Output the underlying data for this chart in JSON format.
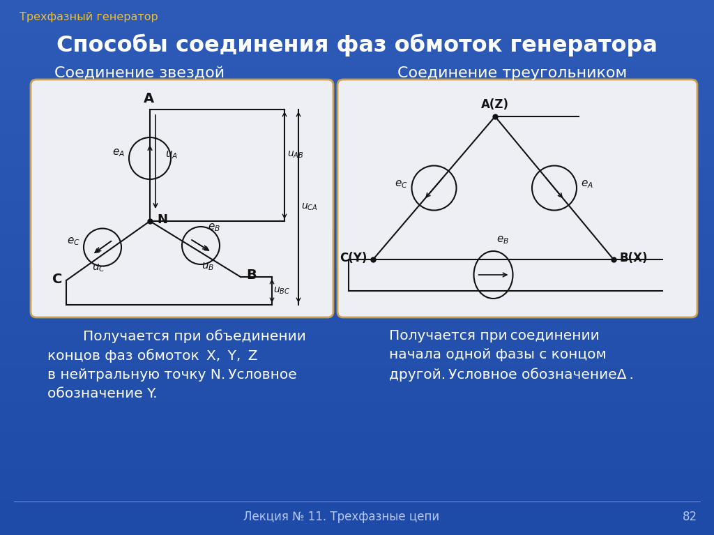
{
  "bg_color": "#2b5db8",
  "title": "Способы соединения фаз обмоток генератора",
  "subtitle": "Трехфазный генератор",
  "footer": "Лекция № 11. Трехфазные цепи",
  "page_num": "82",
  "left_title": "Соединение звездой",
  "right_title": "Соединение треугольником",
  "panel_bg": "#eeeef5",
  "panel_border": "#c8a050",
  "title_color": "#ffffff",
  "subtitle_color": "#e8c040",
  "diagram_line_color": "#111111",
  "text_color": "#ffffff",
  "footer_color": "#b8c8f0"
}
